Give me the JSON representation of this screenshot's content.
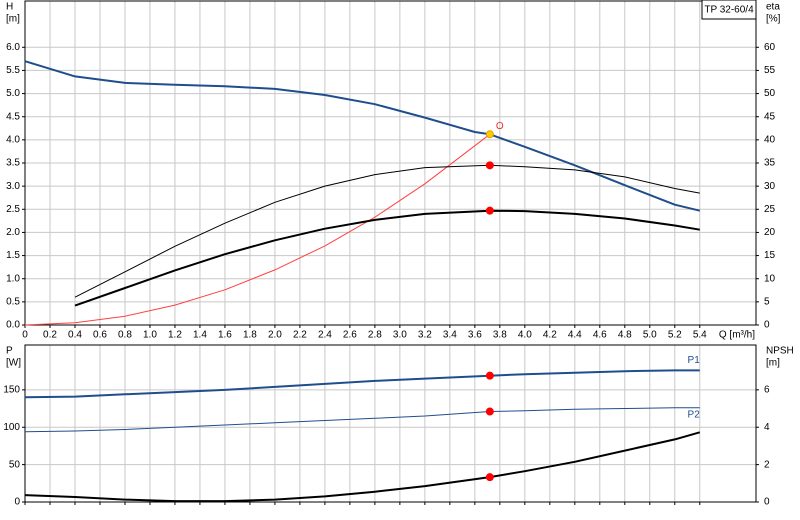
{
  "chart_data": [
    {
      "type": "line",
      "label": "TP 32-60/4",
      "xlabel": "Q [m³/h]",
      "ylabel": [
        "H",
        "[m]"
      ],
      "y2label": [
        "eta",
        "[%]"
      ],
      "xlim": [
        0,
        5.85
      ],
      "xticks": [
        0,
        0.2,
        0.4,
        0.6,
        0.8,
        {
          "value": 1,
          "label": "1.0"
        },
        1.2,
        1.4,
        1.6,
        1.8,
        {
          "value": 2,
          "label": "2.0"
        },
        2.2,
        2.4,
        2.6,
        2.8,
        {
          "value": 3,
          "label": "3.0"
        },
        3.2,
        3.4,
        3.6,
        3.8,
        {
          "value": 4,
          "label": "4.0"
        },
        4.2,
        4.4,
        4.6,
        4.8,
        {
          "value": 5,
          "label": "5.0"
        },
        5.2,
        5.4
      ],
      "ylim": [
        0,
        7
      ],
      "yticks": [
        {
          "value": 0,
          "label": "0.0"
        },
        0.5,
        {
          "value": 1,
          "label": "1.0"
        },
        1.5,
        {
          "value": 2,
          "label": "2.0"
        },
        2.5,
        {
          "value": 3,
          "label": "3.0"
        },
        3.5,
        {
          "value": 4,
          "label": "4.0"
        },
        4.5,
        {
          "value": 5,
          "label": "5.0"
        },
        5.5,
        {
          "value": 6,
          "label": "6.0"
        }
      ],
      "y2lim": [
        0,
        70
      ],
      "y2ticks": [
        0,
        5,
        10,
        15,
        20,
        25,
        30,
        35,
        40,
        45,
        50,
        55,
        60
      ],
      "grid": true,
      "xtick_labels": true,
      "series": [
        {
          "color": "#1f4e8c",
          "width": 2,
          "x": [
            0,
            0.4,
            0.8,
            1.2,
            1.6,
            2.0,
            2.4,
            2.8,
            3.2,
            3.6,
            3.72,
            4.0,
            4.4,
            4.8,
            5.2,
            5.4
          ],
          "values": [
            5.7,
            5.37,
            5.23,
            5.19,
            5.16,
            5.1,
            4.97,
            4.77,
            4.48,
            4.17,
            4.12,
            3.85,
            3.45,
            3.02,
            2.6,
            2.47
          ]
        },
        {
          "color": "#ff4040",
          "width": 1,
          "x": [
            0,
            0.4,
            0.8,
            1.2,
            1.6,
            2.0,
            2.4,
            2.8,
            3.2,
            3.72
          ],
          "values": [
            0,
            0.05,
            0.19,
            0.43,
            0.76,
            1.19,
            1.71,
            2.33,
            3.05,
            4.12
          ]
        },
        {
          "color": "#000000",
          "width": 1,
          "axis": "y2",
          "x": [
            0.4,
            0.8,
            1.2,
            1.6,
            2.0,
            2.4,
            2.8,
            3.2,
            3.72,
            4.0,
            4.4,
            4.8,
            5.2,
            5.4
          ],
          "values": [
            6.0,
            11.5,
            17,
            22,
            26.5,
            30,
            32.5,
            34,
            34.5,
            34.2,
            33.5,
            32,
            29.5,
            28.5
          ]
        },
        {
          "color": "#000000",
          "width": 2,
          "axis": "y2",
          "x": [
            0.4,
            0.8,
            1.2,
            1.6,
            2.0,
            2.4,
            2.8,
            3.2,
            3.72,
            4.0,
            4.4,
            4.8,
            5.2,
            5.4
          ],
          "values": [
            4.2,
            8,
            11.8,
            15.3,
            18.3,
            20.8,
            22.7,
            24,
            24.7,
            24.6,
            24,
            23,
            21.5,
            20.6
          ]
        }
      ],
      "markers": [
        {
          "x": 3.72,
          "y": 4.12,
          "color": "#ffcc00"
        },
        {
          "x": 3.72,
          "y": 34.5,
          "axis": "y2",
          "color": "#ff0000"
        },
        {
          "x": 3.72,
          "y": 24.7,
          "axis": "y2",
          "color": "#ff0000"
        }
      ],
      "annotation": "O"
    },
    {
      "type": "line",
      "ylabel": [
        "P",
        "[W]"
      ],
      "y2label": [
        "NPSH",
        "[m]"
      ],
      "xlim": [
        0,
        5.85
      ],
      "xticks": [
        0,
        0.2,
        0.4,
        0.6,
        0.8,
        1,
        1.2,
        1.4,
        1.6,
        1.8,
        2,
        2.2,
        2.4,
        2.6,
        2.8,
        3,
        3.2,
        3.4,
        3.6,
        3.8,
        4,
        4.2,
        4.4,
        4.6,
        4.8,
        5,
        5.2,
        5.4
      ],
      "ylim": [
        0,
        210
      ],
      "yticks": [
        0,
        50,
        100,
        150
      ],
      "y2lim": [
        0,
        8.4
      ],
      "y2ticks": [
        0,
        2,
        4,
        6
      ],
      "grid": true,
      "xtick_labels": false,
      "series": [
        {
          "name": "P1",
          "color": "#1f4e8c",
          "width": 2,
          "x": [
            0,
            0.4,
            0.8,
            1.2,
            1.6,
            2.0,
            2.4,
            2.8,
            3.2,
            3.72,
            4.0,
            4.4,
            4.8,
            5.2,
            5.4
          ],
          "values": [
            140,
            141,
            144,
            147,
            150,
            154,
            158,
            162,
            165,
            169,
            171,
            173,
            175,
            176,
            176
          ]
        },
        {
          "name": "P2",
          "color": "#1f4e8c",
          "width": 1,
          "x": [
            0,
            0.4,
            0.8,
            1.2,
            1.6,
            2.0,
            2.4,
            2.8,
            3.2,
            3.72,
            4.0,
            4.4,
            4.8,
            5.2,
            5.4
          ],
          "values": [
            94,
            95,
            97,
            100,
            103,
            106,
            109,
            112,
            115,
            121,
            122,
            124,
            125,
            126,
            126
          ]
        },
        {
          "color": "#000000",
          "width": 2,
          "axis": "y2",
          "x": [
            0,
            0.4,
            0.8,
            1.2,
            1.6,
            2.0,
            2.4,
            2.8,
            3.2,
            3.72,
            4.0,
            4.4,
            4.8,
            5.2,
            5.4
          ],
          "values": [
            0.37,
            0.27,
            0.13,
            0.05,
            0.05,
            0.13,
            0.3,
            0.55,
            0.85,
            1.33,
            1.65,
            2.15,
            2.75,
            3.35,
            3.73
          ]
        }
      ],
      "markers": [
        {
          "x": 3.72,
          "y": 169,
          "color": "#ff0000"
        },
        {
          "x": 3.72,
          "y": 121,
          "color": "#ff0000"
        },
        {
          "x": 3.72,
          "y": 1.33,
          "axis": "y2",
          "color": "#ff0000"
        }
      ]
    }
  ]
}
